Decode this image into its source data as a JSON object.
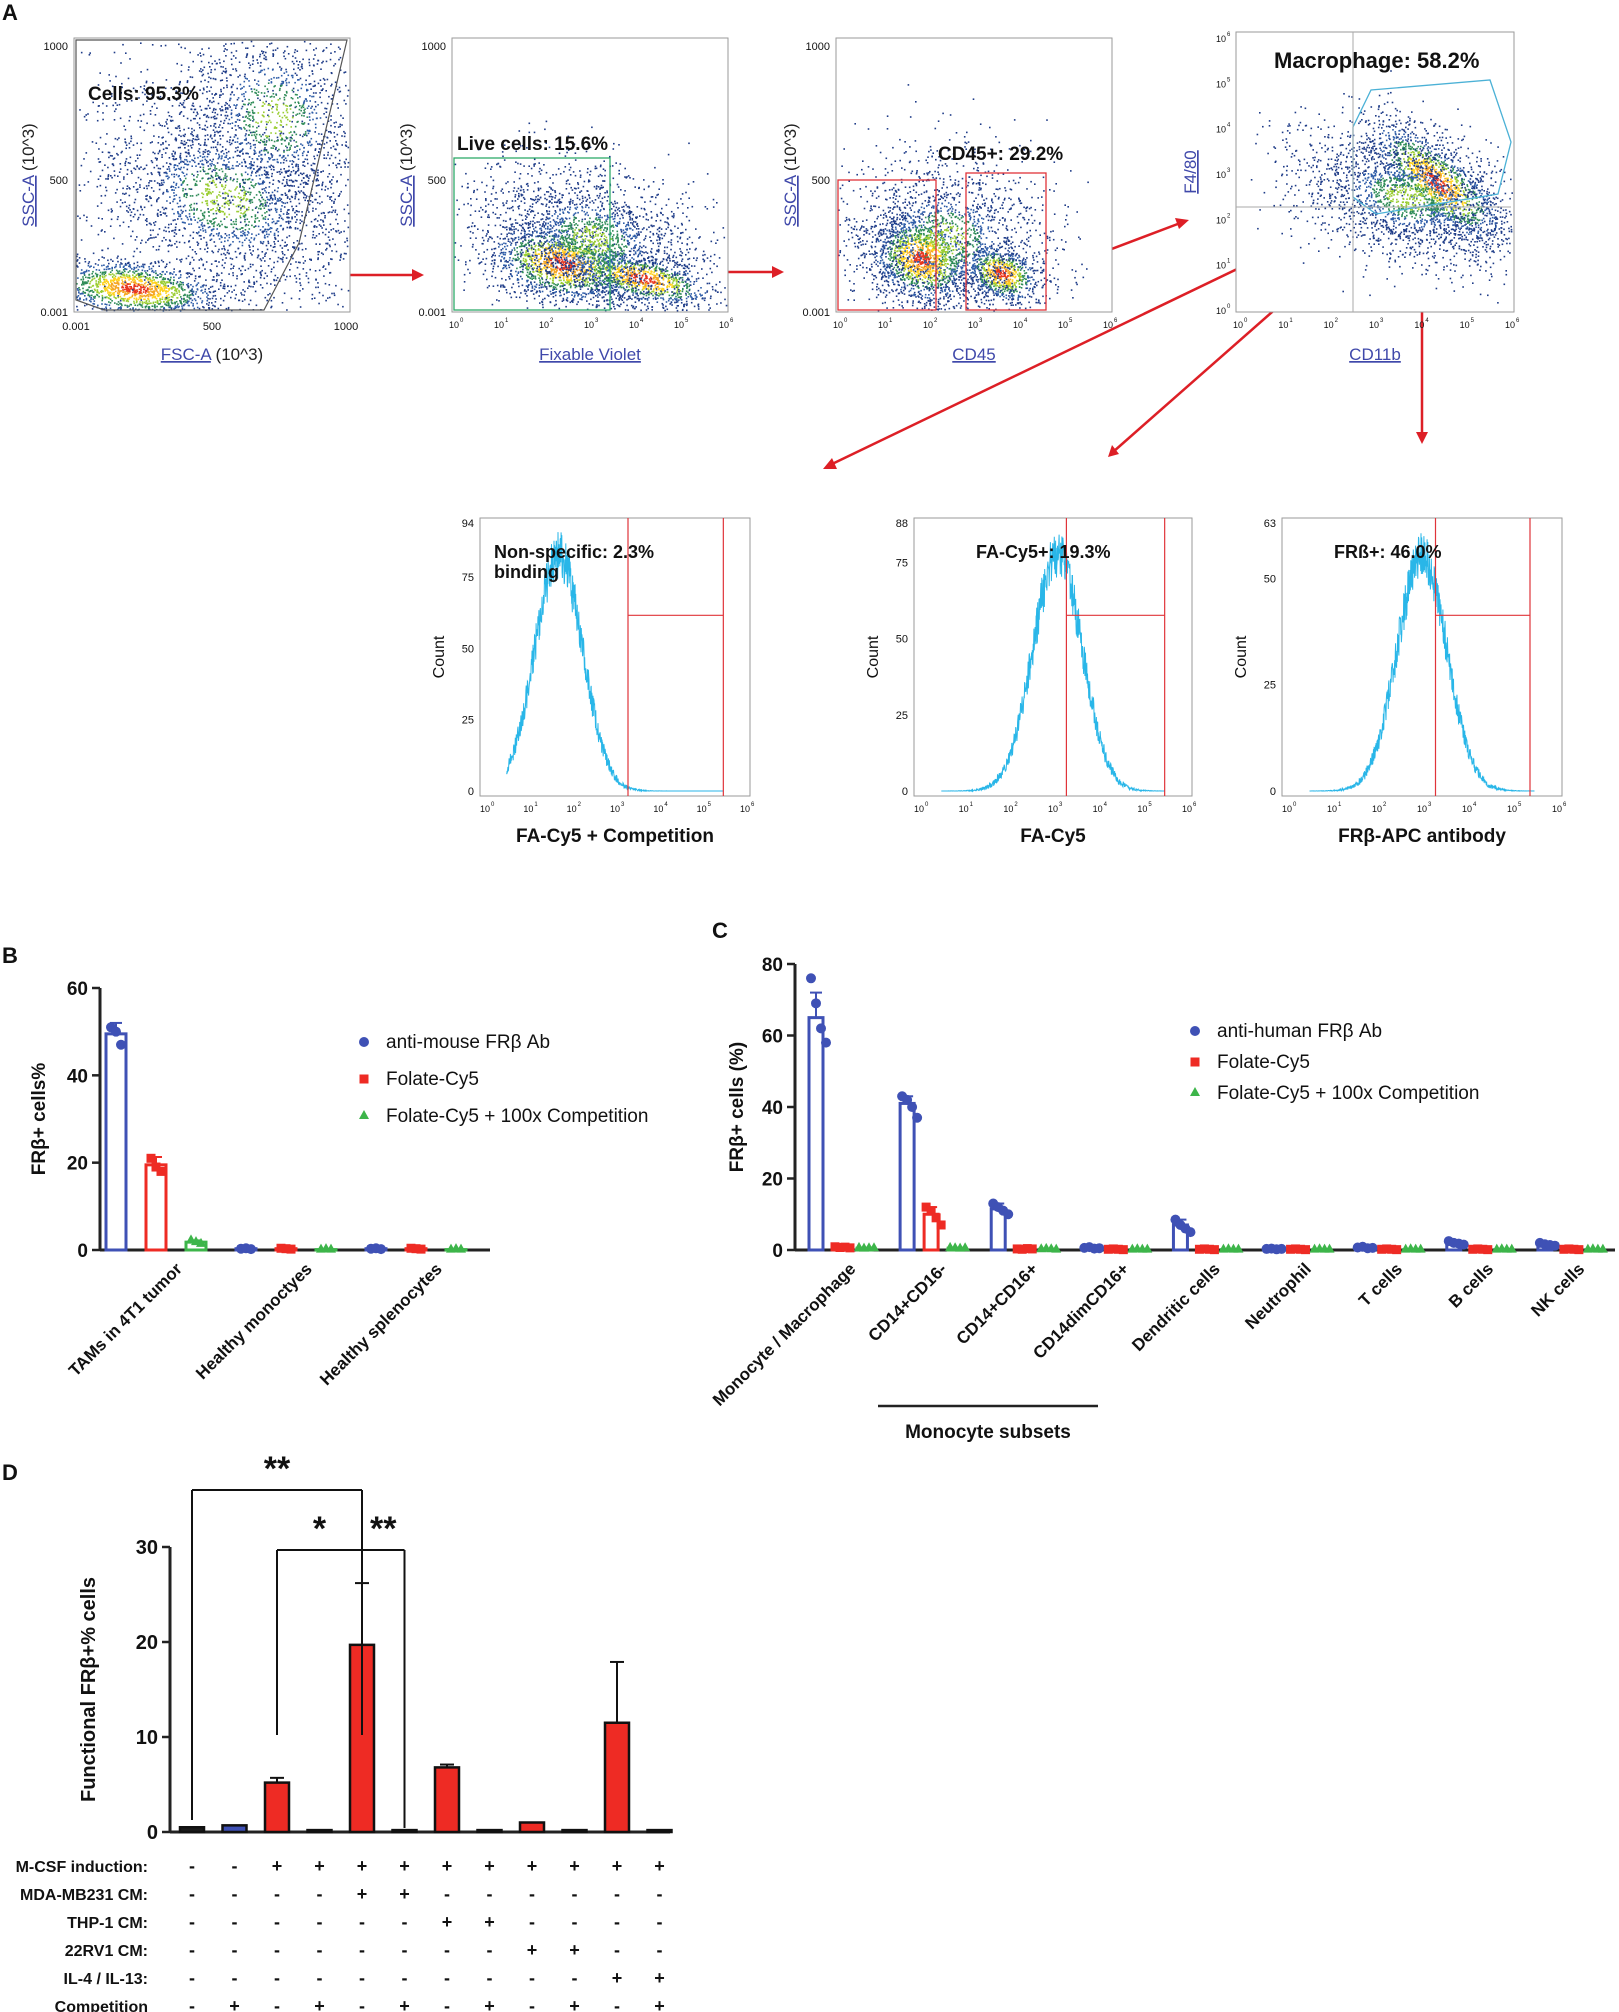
{
  "colors": {
    "blue": "#3F51B5",
    "red": "#EE2B24",
    "green": "#3DB54A",
    "cyan": "#29B6E8",
    "gate_red": "#E0343A",
    "arrow": "#DD1F26",
    "axis": "#222222",
    "link": "#3F48AA"
  },
  "chart_data": [
    {
      "id": "panelA",
      "type": "flow-cytometry-gating",
      "panel_label": "A",
      "dotplots": [
        {
          "name": "cells",
          "gate_label": "Cells: 95.3%",
          "xlabel": "FSC-A",
          "xunit": "(10^3)",
          "ylabel": "SSC-A",
          "yunit": "(10^3)",
          "xticks": [
            "0.001",
            "500",
            "1000"
          ],
          "yticks": [
            "0.001",
            "500",
            "1000"
          ]
        },
        {
          "name": "live",
          "gate_label": "Live cells: 15.6%",
          "xlabel": "Fixable Violet",
          "ylabel": "SSC-A",
          "yunit": "(10^3)",
          "xticks": [
            "10",
            "10",
            "10",
            "10",
            "10",
            "10",
            "10"
          ],
          "xexp": [
            "0",
            "1",
            "2",
            "3",
            "4",
            "5",
            "6"
          ],
          "yticks": [
            "0.001",
            "500",
            "1000"
          ]
        },
        {
          "name": "cd45",
          "gate_label": "CD45+: 29.2%",
          "xlabel": "CD45",
          "ylabel": "SSC-A",
          "yunit": "(10^3)",
          "xticks": [
            "10",
            "10",
            "10",
            "10",
            "10",
            "10",
            "10"
          ],
          "xexp": [
            "0",
            "1",
            "2",
            "3",
            "4",
            "5",
            "6"
          ],
          "yticks": [
            "0.001",
            "500",
            "1000"
          ]
        },
        {
          "name": "macrophage",
          "gate_label": "Macrophage: 58.2%",
          "xlabel": "CD11b",
          "ylabel": "F4/80",
          "xticks": [
            "10",
            "10",
            "10",
            "10",
            "10",
            "10",
            "10"
          ],
          "xexp": [
            "0",
            "1",
            "2",
            "3",
            "4",
            "5",
            "6"
          ],
          "yticks": [
            "10",
            "10",
            "10",
            "10",
            "10",
            "10",
            "10"
          ],
          "yexp": [
            "0",
            "1",
            "2",
            "3",
            "4",
            "5",
            "6"
          ]
        }
      ],
      "histograms": [
        {
          "name": "competition",
          "gate_label": "Non-specific: 2.3%\nbinding",
          "gate_label_lines": [
            "Non-specific: 2.3%",
            "binding"
          ],
          "xlabel": "FA-Cy5 + Competition",
          "ylabel": "Count",
          "ymax": 94,
          "yticks": [
            0,
            25,
            50,
            75,
            94
          ],
          "peak_log": 1.7,
          "gate_log": [
            3.3,
            5.5
          ]
        },
        {
          "name": "fa_cy5",
          "gate_label": "FA-Cy5+: 19.3%",
          "xlabel": "FA-Cy5",
          "ylabel": "Count",
          "ymax": 88,
          "yticks": [
            0,
            25,
            50,
            75,
            88
          ],
          "peak_log": 3.1,
          "gate_log": [
            3.3,
            5.5
          ]
        },
        {
          "name": "frb",
          "gate_label": "FRß+: 46.0%",
          "xlabel": "FRβ-APC antibody",
          "ylabel": "Count",
          "ymax": 63,
          "yticks": [
            0,
            25,
            50,
            63
          ],
          "peak_log": 3.0,
          "gate_log": [
            3.3,
            5.4
          ]
        }
      ],
      "log_ticks": {
        "base": "10",
        "exponents": [
          "0",
          "1",
          "2",
          "3",
          "4",
          "5",
          "6"
        ]
      }
    },
    {
      "id": "panelB",
      "type": "bar",
      "panel_label": "B",
      "categories": [
        "TAMs in 4T1 tumor",
        "Healthy monoctyes",
        "Healthy splenocytes"
      ],
      "series": [
        {
          "name": "anti-mouse FRβ Ab",
          "values": [
            49.5,
            0.3,
            0.3
          ],
          "errors": [
            2.5,
            0.2,
            0.2
          ],
          "points": [
            [
              51,
              50,
              47
            ],
            [
              0.3,
              0.4,
              0.2
            ],
            [
              0.3,
              0.4,
              0.2
            ]
          ]
        },
        {
          "name": "Folate-Cy5",
          "values": [
            19.5,
            0.3,
            0.3
          ],
          "errors": [
            1.8,
            0.2,
            0.2
          ],
          "points": [
            [
              21,
              19,
              18
            ],
            [
              0.4,
              0.3,
              0.2
            ],
            [
              0.4,
              0.3,
              0.2
            ]
          ]
        },
        {
          "name": "Folate-Cy5 + 100x Competition",
          "values": [
            1.8,
            0.1,
            0.1
          ],
          "errors": [
            0.4,
            0.1,
            0.1
          ],
          "points": [
            [
              2.2,
              1.8,
              1.4
            ],
            [
              0.1,
              0.2,
              0.1
            ],
            [
              0.1,
              0.2,
              0.1
            ]
          ]
        }
      ],
      "ylabel": "FRβ+ cells%",
      "ylim": [
        0,
        60
      ],
      "yticks": [
        0,
        20,
        40,
        60
      ]
    },
    {
      "id": "panelC",
      "type": "bar",
      "panel_label": "C",
      "categories": [
        "Monocyte / Macrophage",
        "CD14+CD16-",
        "CD14+CD16+",
        "CD14dimCD16+",
        "Dendritic cells",
        "Neutrophil",
        "T cells",
        "B cells",
        "NK cells"
      ],
      "series": [
        {
          "name": "anti-human FRβ Ab",
          "values": [
            65,
            41,
            11.5,
            0.6,
            7,
            0.3,
            0.7,
            2,
            1.6
          ],
          "errors": [
            7,
            2,
            1.5,
            0.2,
            1.5,
            0.1,
            0.2,
            0.5,
            0.4
          ],
          "points": [
            [
              76,
              69,
              62,
              58
            ],
            [
              43,
              42,
              40,
              37
            ],
            [
              13,
              12,
              11,
              10
            ],
            [
              0.6,
              0.8,
              0.4,
              0.5
            ],
            [
              8.5,
              7,
              6,
              5
            ],
            [
              0.3,
              0.4,
              0.2,
              0.3
            ],
            [
              0.7,
              0.9,
              0.5,
              0.6
            ],
            [
              2.5,
              2,
              1.8,
              1.5
            ],
            [
              2,
              1.6,
              1.4,
              1.2
            ]
          ]
        },
        {
          "name": "Folate-Cy5",
          "values": [
            0.8,
            10,
            0.3,
            0.2,
            0.2,
            0.2,
            0.2,
            0.2,
            0.2
          ],
          "errors": [
            0.2,
            2,
            0.1,
            0.1,
            0.1,
            0.1,
            0.1,
            0.1,
            0.1
          ],
          "points": [
            [
              0.9,
              0.7,
              0.8,
              0.6
            ],
            [
              12,
              11,
              9,
              7
            ],
            [
              0.3,
              0.2,
              0.4,
              0.3
            ],
            [
              0.2,
              0.3,
              0.2,
              0.1
            ],
            [
              0.2,
              0.3,
              0.2,
              0.1
            ],
            [
              0.2,
              0.3,
              0.2,
              0.1
            ],
            [
              0.2,
              0.3,
              0.2,
              0.1
            ],
            [
              0.2,
              0.3,
              0.2,
              0.1
            ],
            [
              0.2,
              0.3,
              0.2,
              0.1
            ]
          ]
        },
        {
          "name": "Folate-Cy5 + 100x Competition",
          "values": [
            0.5,
            0.5,
            0.2,
            0.1,
            0.1,
            0.1,
            0.1,
            0.1,
            0.1
          ],
          "errors": [
            0.1,
            0.2,
            0.1,
            0.1,
            0.1,
            0.1,
            0.1,
            0.1,
            0.1
          ],
          "points": [
            [
              0.6,
              0.4,
              0.5,
              0.5
            ],
            [
              0.6,
              0.5,
              0.4,
              0.5
            ],
            [
              0.2,
              0.3,
              0.2,
              0.1
            ],
            [
              0.1,
              0.2,
              0.1,
              0.1
            ],
            [
              0.1,
              0.2,
              0.1,
              0.1
            ],
            [
              0.1,
              0.2,
              0.1,
              0.1
            ],
            [
              0.1,
              0.2,
              0.1,
              0.1
            ],
            [
              0.1,
              0.2,
              0.1,
              0.1
            ],
            [
              0.1,
              0.2,
              0.1,
              0.1
            ]
          ]
        }
      ],
      "ylabel": "FRβ+ cells (%)",
      "ylim": [
        0,
        80
      ],
      "yticks": [
        0,
        20,
        40,
        60,
        80
      ],
      "bracket_label": "Monocyte subsets",
      "bracket_categories": [
        "CD14+CD16-",
        "CD14+CD16+",
        "CD14dimCD16+"
      ]
    },
    {
      "id": "panelD",
      "type": "bar",
      "panel_label": "D",
      "values": [
        0.5,
        0.7,
        5.2,
        0.2,
        19.7,
        0.2,
        6.8,
        0.2,
        1.0,
        0.2,
        11.5,
        0.2
      ],
      "errors": [
        0.2,
        0,
        0.5,
        0,
        6.5,
        0,
        0.3,
        0,
        0,
        0,
        6.4,
        0
      ],
      "bar_colors": [
        "black",
        "blue",
        "red",
        "black",
        "red",
        "black",
        "red",
        "black",
        "red",
        "black",
        "red",
        "black"
      ],
      "ylabel": "Functional FRβ+% cells",
      "ylim": [
        0,
        30
      ],
      "yticks": [
        0,
        10,
        20,
        30
      ],
      "conditions": [
        {
          "label": "M-CSF induction:",
          "values": [
            "-",
            "-",
            "+",
            "+",
            "+",
            "+",
            "+",
            "+",
            "+",
            "+",
            "+",
            "+"
          ]
        },
        {
          "label": "MDA-MB231 CM:",
          "values": [
            "-",
            "-",
            "-",
            "-",
            "+",
            "+",
            "-",
            "-",
            "-",
            "-",
            "-",
            "-"
          ]
        },
        {
          "label": "THP-1 CM:",
          "values": [
            "-",
            "-",
            "-",
            "-",
            "-",
            "-",
            "+",
            "+",
            "-",
            "-",
            "-",
            "-"
          ]
        },
        {
          "label": "22RV1 CM:",
          "values": [
            "-",
            "-",
            "-",
            "-",
            "-",
            "-",
            "-",
            "-",
            "+",
            "+",
            "-",
            "-"
          ]
        },
        {
          "label": "IL-4 / IL-13:",
          "values": [
            "-",
            "-",
            "-",
            "-",
            "-",
            "-",
            "-",
            "-",
            "-",
            "-",
            "+",
            "+"
          ]
        },
        {
          "label": "Competition",
          "values": [
            "-",
            "+",
            "-",
            "+",
            "-",
            "+",
            "-",
            "+",
            "-",
            "+",
            "-",
            "+"
          ]
        }
      ],
      "significance": [
        {
          "from": 0,
          "to": 4,
          "label": "**"
        },
        {
          "from": 2,
          "to": 4,
          "label": "*"
        },
        {
          "from": 4,
          "to": 5,
          "label": "**"
        }
      ]
    }
  ]
}
